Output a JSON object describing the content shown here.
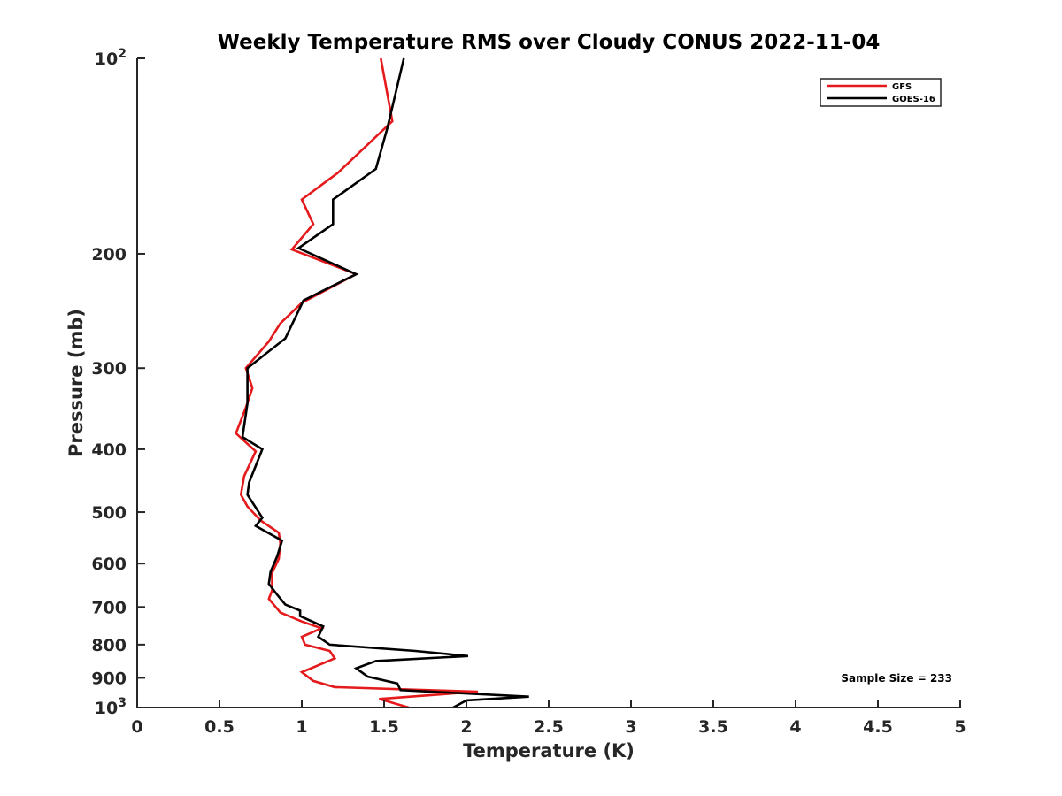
{
  "chart_data": {
    "type": "line",
    "title": "Weekly Temperature RMS over Cloudy CONUS 2022-11-04",
    "xlabel": "Temperature (K)",
    "ylabel": "Pressure (mb)",
    "xlim": [
      0,
      5
    ],
    "ylim": [
      100,
      1000
    ],
    "y_scale": "log",
    "y_reversed": true,
    "x_ticks": [
      "0",
      "0.5",
      "1",
      "1.5",
      "2",
      "2.5",
      "3",
      "3.5",
      "4",
      "4.5",
      "5"
    ],
    "y_ticks": [
      {
        "value": 100,
        "base": "10",
        "exp": "2"
      },
      {
        "value": 200,
        "label": "200"
      },
      {
        "value": 300,
        "label": "300"
      },
      {
        "value": 400,
        "label": "400"
      },
      {
        "value": 500,
        "label": "500"
      },
      {
        "value": 600,
        "label": "600"
      },
      {
        "value": 700,
        "label": "700"
      },
      {
        "value": 800,
        "label": "800"
      },
      {
        "value": 900,
        "label": "900"
      },
      {
        "value": 1000,
        "base": "10",
        "exp": "3"
      }
    ],
    "legend_position": "top-right",
    "annotation": "Sample Size = 233",
    "series": [
      {
        "name": "GFS",
        "color": "#e41a1c",
        "points": [
          [
            1.48,
            100
          ],
          [
            1.55,
            125
          ],
          [
            1.22,
            150
          ],
          [
            1.0,
            165
          ],
          [
            1.07,
            180
          ],
          [
            0.94,
            197
          ],
          [
            1.33,
            215
          ],
          [
            1.0,
            238
          ],
          [
            0.87,
            256
          ],
          [
            0.8,
            273
          ],
          [
            0.66,
            300
          ],
          [
            0.7,
            322
          ],
          [
            0.66,
            345
          ],
          [
            0.6,
            378
          ],
          [
            0.72,
            403
          ],
          [
            0.65,
            440
          ],
          [
            0.63,
            470
          ],
          [
            0.67,
            490
          ],
          [
            0.75,
            515
          ],
          [
            0.86,
            538
          ],
          [
            0.87,
            558
          ],
          [
            0.86,
            590
          ],
          [
            0.82,
            620
          ],
          [
            0.82,
            660
          ],
          [
            0.8,
            680
          ],
          [
            0.87,
            714
          ],
          [
            1.0,
            737
          ],
          [
            1.12,
            755
          ],
          [
            1.0,
            778
          ],
          [
            1.02,
            800
          ],
          [
            1.17,
            818
          ],
          [
            1.2,
            840
          ],
          [
            1.0,
            882
          ],
          [
            1.07,
            910
          ],
          [
            1.2,
            930
          ],
          [
            2.07,
            945
          ],
          [
            1.47,
            970
          ],
          [
            1.65,
            1000
          ]
        ]
      },
      {
        "name": "GOES-16",
        "color": "#000000",
        "points": [
          [
            1.62,
            100
          ],
          [
            1.52,
            128
          ],
          [
            1.45,
            148
          ],
          [
            1.19,
            165
          ],
          [
            1.19,
            180
          ],
          [
            0.98,
            196
          ],
          [
            1.33,
            215
          ],
          [
            1.01,
            236
          ],
          [
            0.9,
            270
          ],
          [
            0.67,
            300
          ],
          [
            0.67,
            340
          ],
          [
            0.64,
            383
          ],
          [
            0.76,
            400
          ],
          [
            0.68,
            450
          ],
          [
            0.67,
            470
          ],
          [
            0.76,
            510
          ],
          [
            0.72,
            525
          ],
          [
            0.88,
            553
          ],
          [
            0.85,
            585
          ],
          [
            0.81,
            618
          ],
          [
            0.8,
            645
          ],
          [
            0.85,
            670
          ],
          [
            0.9,
            694
          ],
          [
            0.99,
            709
          ],
          [
            0.99,
            723
          ],
          [
            1.13,
            750
          ],
          [
            1.1,
            778
          ],
          [
            1.17,
            800
          ],
          [
            1.69,
            818
          ],
          [
            2.01,
            833
          ],
          [
            1.45,
            848
          ],
          [
            1.33,
            870
          ],
          [
            1.4,
            896
          ],
          [
            1.58,
            918
          ],
          [
            1.6,
            940
          ],
          [
            2.38,
            962
          ],
          [
            2.0,
            975
          ],
          [
            1.92,
            1000
          ]
        ]
      }
    ]
  }
}
